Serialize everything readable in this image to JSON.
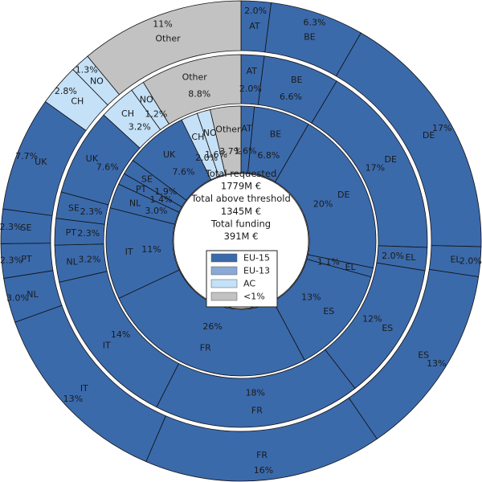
{
  "colors": {
    "EU-15": "#3b6aab",
    "EU-13": "#8aa9d6",
    "AC": "#c5e1f7",
    "<1%": "#c2c2c2",
    "stroke": "#111111",
    "ring_gap": "#ffffff"
  },
  "center": {
    "lines": [
      "Total requested",
      "1779M €",
      "Total above threshold",
      "1345M €",
      "Total funding",
      "391M €"
    ]
  },
  "legend": [
    {
      "label": "EU-15",
      "group": "EU-15"
    },
    {
      "label": "EU-13",
      "group": "EU-13"
    },
    {
      "label": "AC",
      "group": "AC"
    },
    {
      "label": "<1%",
      "group": "<1%"
    }
  ],
  "chart_data": {
    "type": "pie",
    "variant": "nested-donut",
    "rings": [
      {
        "name": "",
        "slices": [
          {
            "country": "AT",
            "value": 1.6,
            "pct_label": "1.6%",
            "group": "EU-15"
          },
          {
            "country": "BE",
            "value": 6.8,
            "pct_label": "6.8%",
            "group": "EU-15"
          },
          {
            "country": "DE",
            "value": 20,
            "pct_label": "20%",
            "group": "EU-15"
          },
          {
            "country": "EL",
            "value": 1.1,
            "pct_label": "1.1%",
            "group": "EU-15"
          },
          {
            "country": "ES",
            "value": 13,
            "pct_label": "13%",
            "group": "EU-15"
          },
          {
            "country": "FR",
            "value": 26,
            "pct_label": "26%",
            "group": "EU-15"
          },
          {
            "country": "IT",
            "value": 11,
            "pct_label": "11%",
            "group": "EU-15"
          },
          {
            "country": "NL",
            "value": 3.0,
            "pct_label": "3.0%",
            "group": "EU-15"
          },
          {
            "country": "PT",
            "value": 1.4,
            "pct_label": "1.4%",
            "group": "EU-15"
          },
          {
            "country": "SE",
            "value": 1.9,
            "pct_label": "1.9%",
            "group": "EU-15"
          },
          {
            "country": "UK",
            "value": 7.6,
            "pct_label": "7.6%",
            "group": "EU-15"
          },
          {
            "country": "CH",
            "value": 2.0,
            "pct_label": "2.0%",
            "group": "AC"
          },
          {
            "country": "NO",
            "value": 1.6,
            "pct_label": "1.6%",
            "group": "AC"
          },
          {
            "country": "Other",
            "value": 3.7,
            "pct_label": "3.7%",
            "group": "<1%"
          }
        ]
      },
      {
        "name": "",
        "slices": [
          {
            "country": "AT",
            "value": 2.0,
            "pct_label": "2.0%",
            "group": "EU-15"
          },
          {
            "country": "BE",
            "value": 6.6,
            "pct_label": "6.6%",
            "group": "EU-15"
          },
          {
            "country": "DE",
            "value": 17,
            "pct_label": "17%",
            "group": "EU-15"
          },
          {
            "country": "EL",
            "value": 2.0,
            "pct_label": "2.0%",
            "group": "EU-15"
          },
          {
            "country": "ES",
            "value": 12,
            "pct_label": "12%",
            "group": "EU-15"
          },
          {
            "country": "FR",
            "value": 18,
            "pct_label": "18%",
            "group": "EU-15"
          },
          {
            "country": "IT",
            "value": 14,
            "pct_label": "14%",
            "group": "EU-15"
          },
          {
            "country": "NL",
            "value": 3.2,
            "pct_label": "3.2%",
            "group": "EU-15"
          },
          {
            "country": "PT",
            "value": 2.3,
            "pct_label": "2.3%",
            "group": "EU-15"
          },
          {
            "country": "SE",
            "value": 2.3,
            "pct_label": "2.3%",
            "group": "EU-15"
          },
          {
            "country": "UK",
            "value": 7.6,
            "pct_label": "7.6%",
            "group": "EU-15"
          },
          {
            "country": "CH",
            "value": 3.2,
            "pct_label": "3.2%",
            "group": "AC"
          },
          {
            "country": "NO",
            "value": 1.2,
            "pct_label": "1.2%",
            "group": "AC"
          },
          {
            "country": "Other",
            "value": 8.8,
            "pct_label": "8.8%",
            "group": "<1%"
          }
        ]
      },
      {
        "name": "",
        "slices": [
          {
            "country": "AT",
            "value": 2.0,
            "pct_label": "2.0%",
            "group": "EU-15"
          },
          {
            "country": "BE",
            "value": 6.3,
            "pct_label": "6.3%",
            "group": "EU-15"
          },
          {
            "country": "DE",
            "value": 17,
            "pct_label": "17%",
            "group": "EU-15"
          },
          {
            "country": "EL",
            "value": 2.0,
            "pct_label": "2.0%",
            "group": "EU-15"
          },
          {
            "country": "ES",
            "value": 13,
            "pct_label": "13%",
            "group": "EU-15"
          },
          {
            "country": "FR",
            "value": 16,
            "pct_label": "16%",
            "group": "EU-15"
          },
          {
            "country": "IT",
            "value": 13,
            "pct_label": "13%",
            "group": "EU-15"
          },
          {
            "country": "NL",
            "value": 3.0,
            "pct_label": "3.0%",
            "group": "EU-15"
          },
          {
            "country": "PT",
            "value": 2.3,
            "pct_label": "2.3%",
            "group": "EU-15"
          },
          {
            "country": "SE",
            "value": 2.3,
            "pct_label": "2.3%",
            "group": "EU-15"
          },
          {
            "country": "UK",
            "value": 7.7,
            "pct_label": "7.7%",
            "group": "EU-15"
          },
          {
            "country": "CH",
            "value": 2.8,
            "pct_label": "2.8%",
            "group": "AC"
          },
          {
            "country": "NO",
            "value": 1.3,
            "pct_label": "1.3%",
            "group": "AC"
          },
          {
            "country": "Other",
            "value": 11,
            "pct_label": "11%",
            "group": "<1%"
          }
        ]
      }
    ]
  }
}
